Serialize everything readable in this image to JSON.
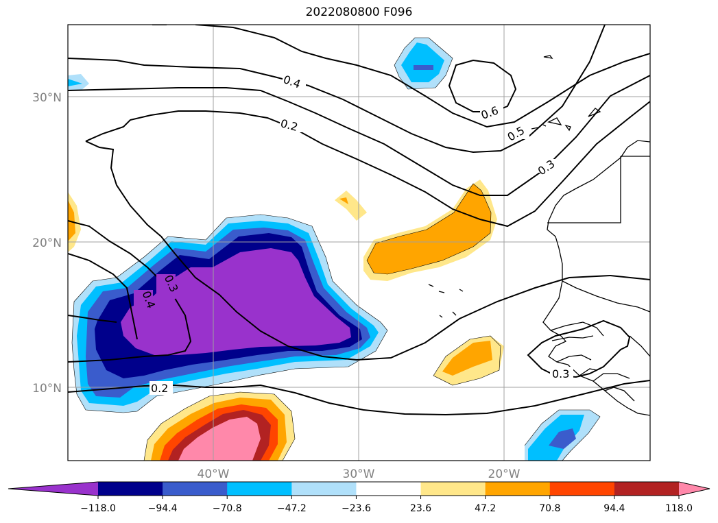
{
  "title": "2022080800 F096",
  "lat_ticks": [
    "30°N",
    "20°N",
    "10°N"
  ],
  "lon_ticks": [
    "40°W",
    "30°W",
    "20°W"
  ],
  "contour_labels": [
    "0.4",
    "0.2",
    "0.6",
    "0.5",
    "0.3",
    "0.3",
    "0.4",
    "0.2",
    "0.3"
  ],
  "colorbar": {
    "colors": [
      "#9932cc",
      "#00008b",
      "#3a5ccc",
      "#00bfff",
      "#b0e0fa",
      "#ffffff",
      "#ffe78a",
      "#ffa500",
      "#ff4500",
      "#b22222",
      "#ff88aa"
    ],
    "tick_labels": [
      "−118.0",
      "−94.4",
      "−70.8",
      "−47.2",
      "−23.6",
      "23.6",
      "47.2",
      "70.8",
      "94.4",
      "118.0"
    ]
  }
}
